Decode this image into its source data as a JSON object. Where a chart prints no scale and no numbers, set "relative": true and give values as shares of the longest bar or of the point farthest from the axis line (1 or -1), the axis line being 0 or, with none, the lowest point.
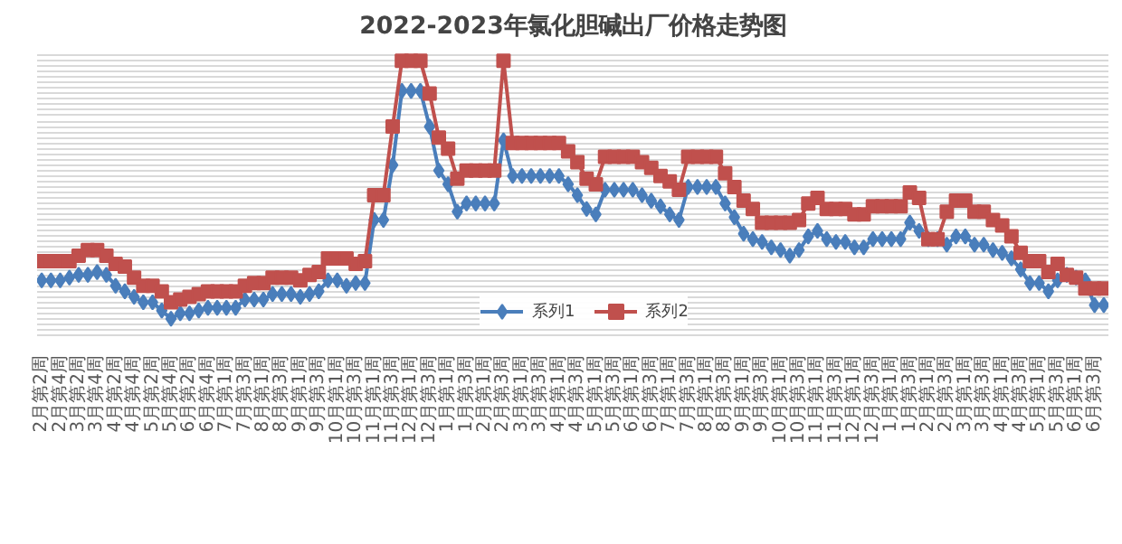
{
  "chart_data": {
    "type": "line",
    "title": "2022-2023年氯化胆碱出厂价格走势图",
    "relative": true,
    "grid": "y",
    "legend": "bottom",
    "categories": [
      "2月第2周",
      null,
      "2月第4周",
      null,
      "3月第2周",
      null,
      "3月第4周",
      null,
      "4月第2周",
      null,
      "4月第4周",
      null,
      "5月第2周",
      null,
      "5月第4周",
      null,
      "6月第2周",
      null,
      "6月第4周",
      null,
      "7月第1周",
      null,
      "7月第3周",
      null,
      "8月第1周",
      null,
      "8月第3周",
      null,
      "9月第1周",
      null,
      "9月第3周",
      null,
      "10月第1周",
      null,
      "10月第3周",
      null,
      "11月第1周",
      null,
      "11月第3周",
      null,
      "12月第1周",
      null,
      "12月第3周",
      null,
      "1月第1周",
      null,
      "1月第3周",
      null,
      "2月第1周",
      null,
      "2月第3周",
      null,
      "3月第1周",
      null,
      "3月第3周",
      null,
      "4月第1周",
      null,
      "4月第3周",
      null,
      "5月第1周",
      null,
      "5月第3周",
      null,
      "6月第1周",
      null,
      "6月第3周",
      null,
      "7月第1周",
      null,
      "7月第3周",
      null,
      "8月第1周",
      null,
      "8月第3周",
      null,
      "9月第1周",
      null,
      "9月第3周",
      null,
      "10月第1周",
      null,
      "10月第3周",
      null,
      "11月第1周",
      null,
      "11月第3周",
      null,
      "12月第1周",
      null,
      "12月第3周",
      null,
      "1月第1周",
      null,
      "1月第3周",
      null,
      "2月第1周",
      null,
      "2月第3周",
      null,
      "3月第1周",
      null,
      "3月第3周",
      null,
      "4月第1周",
      null,
      "4月第3周",
      null,
      "5月第1周",
      null,
      "5月第3周",
      null,
      "6月第1周",
      null,
      "6月第3周",
      null
    ],
    "series": [
      {
        "name": "系列1",
        "color": "#4a7ebb",
        "marker": "diamond",
        "values": [
          0.2,
          0.2,
          0.2,
          0.21,
          0.22,
          0.22,
          0.23,
          0.22,
          0.18,
          0.16,
          0.14,
          0.12,
          0.12,
          0.09,
          0.06,
          0.08,
          0.08,
          0.09,
          0.1,
          0.1,
          0.1,
          0.1,
          0.13,
          0.13,
          0.13,
          0.15,
          0.15,
          0.15,
          0.14,
          0.15,
          0.16,
          0.2,
          0.2,
          0.18,
          0.19,
          0.19,
          0.42,
          0.42,
          0.62,
          0.89,
          0.89,
          0.89,
          0.76,
          0.6,
          0.55,
          0.45,
          0.48,
          0.48,
          0.48,
          0.48,
          0.71,
          0.58,
          0.58,
          0.58,
          0.58,
          0.58,
          0.58,
          0.55,
          0.51,
          0.46,
          0.44,
          0.53,
          0.53,
          0.53,
          0.53,
          0.51,
          0.49,
          0.47,
          0.44,
          0.42,
          0.54,
          0.54,
          0.54,
          0.54,
          0.48,
          0.43,
          0.37,
          0.35,
          0.34,
          0.32,
          0.31,
          0.29,
          0.31,
          0.36,
          0.38,
          0.35,
          0.34,
          0.34,
          0.32,
          0.32,
          0.35,
          0.35,
          0.35,
          0.35,
          0.41,
          0.38,
          0.35,
          0.35,
          0.33,
          0.36,
          0.36,
          0.33,
          0.33,
          0.31,
          0.3,
          0.28,
          0.24,
          0.19,
          0.19,
          0.16,
          0.2,
          0.22,
          0.21,
          0.2,
          0.11,
          0.11
        ]
      },
      {
        "name": "系列2",
        "color": "#c0504d",
        "marker": "square",
        "values": [
          0.27,
          0.27,
          0.27,
          0.27,
          0.29,
          0.31,
          0.31,
          0.29,
          0.26,
          0.25,
          0.21,
          0.18,
          0.18,
          0.16,
          0.12,
          0.13,
          0.14,
          0.15,
          0.16,
          0.16,
          0.16,
          0.16,
          0.18,
          0.19,
          0.19,
          0.21,
          0.21,
          0.21,
          0.2,
          0.22,
          0.23,
          0.28,
          0.28,
          0.28,
          0.26,
          0.27,
          0.51,
          0.51,
          0.76,
          1,
          1,
          1,
          0.88,
          0.72,
          0.68,
          0.57,
          0.6,
          0.6,
          0.6,
          0.6,
          1,
          0.7,
          0.7,
          0.7,
          0.7,
          0.7,
          0.7,
          0.67,
          0.63,
          0.57,
          0.55,
          0.65,
          0.65,
          0.65,
          0.65,
          0.63,
          0.61,
          0.58,
          0.56,
          0.53,
          0.65,
          0.65,
          0.65,
          0.65,
          0.59,
          0.54,
          0.49,
          0.46,
          0.41,
          0.41,
          0.41,
          0.41,
          0.42,
          0.48,
          0.5,
          0.46,
          0.46,
          0.46,
          0.44,
          0.44,
          0.47,
          0.47,
          0.47,
          0.47,
          0.52,
          0.5,
          0.35,
          0.35,
          0.45,
          0.49,
          0.49,
          0.45,
          0.45,
          0.42,
          0.4,
          0.36,
          0.3,
          0.27,
          0.27,
          0.23,
          0.26,
          0.22,
          0.21,
          0.17,
          0.17,
          0.17
        ]
      }
    ]
  }
}
